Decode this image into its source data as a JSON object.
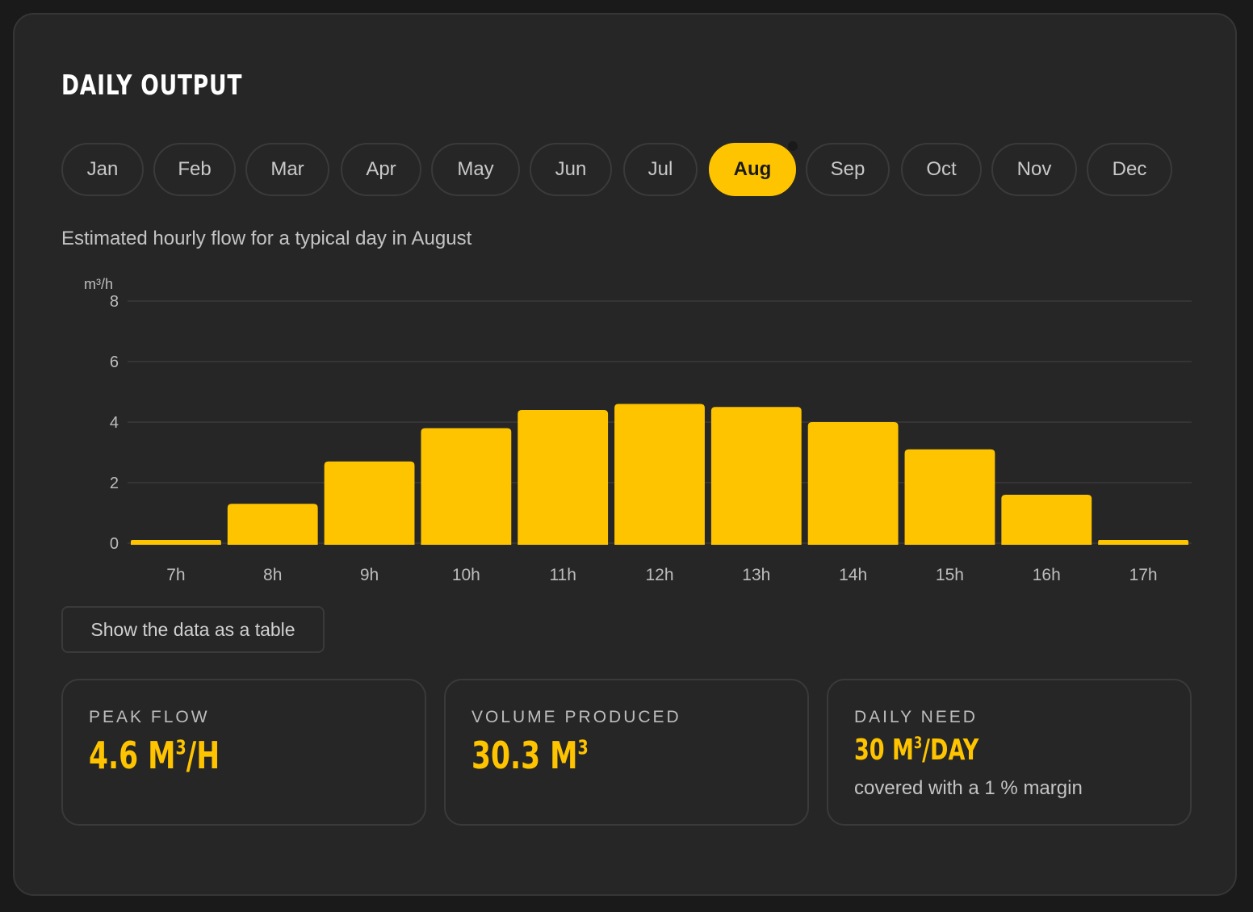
{
  "title": "DAILY OUTPUT",
  "months": [
    "Jan",
    "Feb",
    "Mar",
    "Apr",
    "May",
    "Jun",
    "Jul",
    "Aug",
    "Sep",
    "Oct",
    "Nov",
    "Dec"
  ],
  "selected_month": "Aug",
  "subtitle": "Estimated hourly flow for a typical day in August",
  "table_button": "Show the data as a table",
  "stats": {
    "peak": {
      "label": "PEAK FLOW",
      "value": "4.6 M",
      "sup": "3",
      "unit": "/H"
    },
    "volume": {
      "label": "VOLUME PRODUCED",
      "value": "30.3 M",
      "sup": "3",
      "unit": ""
    },
    "need": {
      "label": "DAILY NEED",
      "value": "30 M",
      "sup": "3",
      "unit": "/DAY",
      "note": "covered with a 1 % margin"
    }
  },
  "colors": {
    "accent": "#ffc400",
    "background": "#262626",
    "grid": "#3a3a3a"
  },
  "chart_data": {
    "type": "bar",
    "ylabel": "m³/h",
    "categories": [
      "7h",
      "8h",
      "9h",
      "10h",
      "11h",
      "12h",
      "13h",
      "14h",
      "15h",
      "16h",
      "17h"
    ],
    "values": [
      0.1,
      1.3,
      2.7,
      3.8,
      4.4,
      4.6,
      4.5,
      4.0,
      3.1,
      1.6,
      0.1
    ],
    "yticks": [
      0,
      2,
      4,
      6,
      8
    ],
    "ylim": [
      0,
      8
    ],
    "grid": true
  }
}
